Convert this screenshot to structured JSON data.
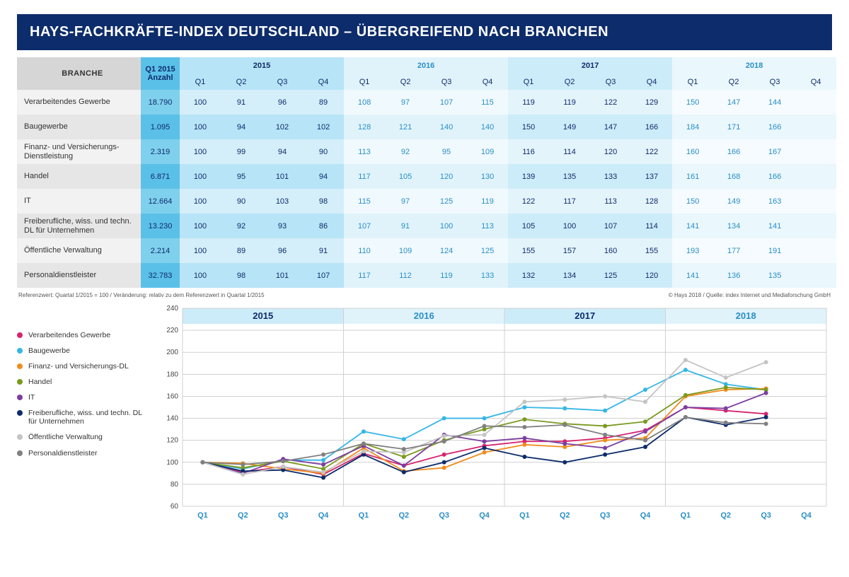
{
  "title": "HAYS-FACHKRÄFTE-INDEX DEUTSCHLAND – ÜBERGREIFEND NACH BRANCHEN",
  "header": {
    "branche": "BRANCHE",
    "q1_2015_anzahl_l1": "Q1 2015",
    "q1_2015_anzahl_l2": "Anzahl",
    "years": [
      "2015",
      "2016",
      "2017",
      "2018"
    ],
    "quarters": [
      "Q1",
      "Q2",
      "Q3",
      "Q4"
    ]
  },
  "rows": [
    {
      "label": "Verarbeitendes Gewerbe",
      "anzahl": "18.790",
      "vals": [
        100,
        91,
        96,
        89,
        108,
        97,
        107,
        115,
        119,
        119,
        122,
        129,
        150,
        147,
        144,
        null
      ],
      "color": "#d6246f"
    },
    {
      "label": "Baugewerbe",
      "anzahl": "1.095",
      "vals": [
        100,
        94,
        102,
        102,
        128,
        121,
        140,
        140,
        150,
        149,
        147,
        166,
        184,
        171,
        166,
        null
      ],
      "color": "#35b6e6"
    },
    {
      "label": "Finanz- und Versicherungs-Dienstleistung",
      "legend_label": "Finanz- und Versicherungs-DL",
      "anzahl": "2.319",
      "vals": [
        100,
        99,
        94,
        90,
        113,
        92,
        95,
        109,
        116,
        114,
        120,
        122,
        160,
        166,
        167,
        null
      ],
      "color": "#f08c1e"
    },
    {
      "label": "Handel",
      "anzahl": "6.871",
      "vals": [
        100,
        95,
        101,
        94,
        117,
        105,
        120,
        130,
        139,
        135,
        133,
        137,
        161,
        168,
        166,
        null
      ],
      "color": "#7a9a1f"
    },
    {
      "label": "IT",
      "anzahl": "12.664",
      "vals": [
        100,
        90,
        103,
        98,
        115,
        97,
        125,
        119,
        122,
        117,
        113,
        128,
        150,
        149,
        163,
        null
      ],
      "color": "#7c3fa0"
    },
    {
      "label": "Freiberufliche, wiss. und techn. DL für Unternehmen",
      "anzahl": "13.230",
      "vals": [
        100,
        92,
        93,
        86,
        107,
        91,
        100,
        113,
        105,
        100,
        107,
        114,
        141,
        134,
        141,
        null
      ],
      "color": "#0d2c6b"
    },
    {
      "label": "Öffentliche Verwaltung",
      "anzahl": "2.214",
      "vals": [
        100,
        89,
        96,
        91,
        110,
        109,
        124,
        125,
        155,
        157,
        160,
        155,
        193,
        177,
        191,
        null
      ],
      "color": "#c4c4c4"
    },
    {
      "label": "Personaldienstleister",
      "anzahl": "32.783",
      "vals": [
        100,
        98,
        101,
        107,
        117,
        112,
        119,
        133,
        132,
        134,
        125,
        120,
        141,
        136,
        135,
        null
      ],
      "color": "#808080"
    }
  ],
  "footnote_left": "Referenzwert: Quartal 1/2015 = 100 / Veränderung: relativ zu dem Referenzwert in Quartal 1/2015",
  "footnote_right": "© Hays 2018 / Quelle: index Internet und Mediaforschung GmbH",
  "chart": {
    "type": "line",
    "ylim": [
      60,
      240
    ],
    "ytick_step": 20,
    "x_labels": [
      "Q1",
      "Q2",
      "Q3",
      "Q4",
      "Q1",
      "Q2",
      "Q3",
      "Q4",
      "Q1",
      "Q2",
      "Q3",
      "Q4",
      "Q1",
      "Q2",
      "Q3",
      "Q4"
    ],
    "year_bands": [
      {
        "label": "2015",
        "class": ""
      },
      {
        "label": "2016",
        "class": "alt"
      },
      {
        "label": "2017",
        "class": ""
      },
      {
        "label": "2018",
        "class": "alt"
      }
    ],
    "background_color": "#ffffff",
    "grid_color": "#d0d0d0",
    "line_width": 1.8,
    "marker": "circle",
    "marker_size": 3
  },
  "colwidths": {
    "label": 175,
    "anzahl": 55,
    "q": 58
  }
}
